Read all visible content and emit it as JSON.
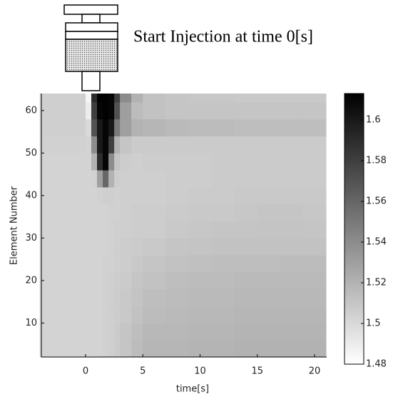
{
  "annotation": "Start Injection at time 0[s]",
  "chart_data": {
    "type": "heatmap",
    "x_label": "time[s]",
    "y_label": "Element Number",
    "x_edges": [
      -4,
      -2,
      0,
      0.5,
      1,
      1.5,
      2,
      2.5,
      3,
      4,
      5,
      7,
      9,
      11,
      13,
      15,
      17,
      19,
      21
    ],
    "y_edges": [
      2,
      6,
      10,
      14,
      18,
      22,
      26,
      30,
      34,
      38,
      42,
      46,
      50,
      54,
      58,
      62,
      64
    ],
    "values": [
      [
        1.503,
        1.503,
        1.503,
        1.503,
        1.503,
        1.504,
        1.505,
        1.507,
        1.51,
        1.515,
        1.518,
        1.518,
        1.519,
        1.519,
        1.52,
        1.52,
        1.52,
        1.52
      ],
      [
        1.503,
        1.503,
        1.503,
        1.503,
        1.503,
        1.504,
        1.505,
        1.507,
        1.51,
        1.514,
        1.517,
        1.517,
        1.518,
        1.518,
        1.519,
        1.519,
        1.519,
        1.519
      ],
      [
        1.503,
        1.503,
        1.503,
        1.503,
        1.503,
        1.504,
        1.505,
        1.506,
        1.508,
        1.512,
        1.515,
        1.516,
        1.517,
        1.517,
        1.518,
        1.518,
        1.518,
        1.518
      ],
      [
        1.503,
        1.503,
        1.503,
        1.503,
        1.503,
        1.504,
        1.505,
        1.506,
        1.508,
        1.511,
        1.514,
        1.515,
        1.516,
        1.516,
        1.517,
        1.517,
        1.517,
        1.517
      ],
      [
        1.503,
        1.503,
        1.503,
        1.503,
        1.503,
        1.504,
        1.505,
        1.506,
        1.507,
        1.51,
        1.512,
        1.514,
        1.515,
        1.515,
        1.516,
        1.516,
        1.516,
        1.516
      ],
      [
        1.503,
        1.503,
        1.503,
        1.503,
        1.503,
        1.504,
        1.504,
        1.505,
        1.506,
        1.508,
        1.51,
        1.512,
        1.513,
        1.514,
        1.514,
        1.514,
        1.515,
        1.515
      ],
      [
        1.503,
        1.503,
        1.503,
        1.503,
        1.503,
        1.503,
        1.504,
        1.505,
        1.506,
        1.507,
        1.508,
        1.51,
        1.511,
        1.512,
        1.512,
        1.512,
        1.512,
        1.512
      ],
      [
        1.503,
        1.503,
        1.503,
        1.503,
        1.503,
        1.503,
        1.504,
        1.505,
        1.505,
        1.506,
        1.506,
        1.508,
        1.509,
        1.51,
        1.51,
        1.511,
        1.511,
        1.51
      ],
      [
        1.503,
        1.503,
        1.503,
        1.503,
        1.503,
        1.503,
        1.504,
        1.504,
        1.505,
        1.506,
        1.506,
        1.507,
        1.508,
        1.508,
        1.509,
        1.51,
        1.51,
        1.509
      ],
      [
        1.503,
        1.503,
        1.503,
        1.503,
        1.504,
        1.505,
        1.505,
        1.504,
        1.505,
        1.505,
        1.505,
        1.506,
        1.507,
        1.507,
        1.508,
        1.508,
        1.508,
        1.508
      ],
      [
        1.503,
        1.503,
        1.503,
        1.504,
        1.53,
        1.56,
        1.52,
        1.506,
        1.505,
        1.505,
        1.505,
        1.506,
        1.506,
        1.507,
        1.507,
        1.507,
        1.507,
        1.507
      ],
      [
        1.503,
        1.503,
        1.503,
        1.52,
        1.59,
        1.61,
        1.54,
        1.51,
        1.506,
        1.505,
        1.506,
        1.506,
        1.506,
        1.507,
        1.507,
        1.507,
        1.507,
        1.507
      ],
      [
        1.504,
        1.504,
        1.503,
        1.54,
        1.6,
        1.61,
        1.58,
        1.52,
        1.51,
        1.507,
        1.507,
        1.507,
        1.507,
        1.507,
        1.507,
        1.507,
        1.507,
        1.507
      ],
      [
        1.505,
        1.505,
        1.5,
        1.57,
        1.6,
        1.61,
        1.6,
        1.55,
        1.53,
        1.52,
        1.518,
        1.516,
        1.515,
        1.515,
        1.514,
        1.514,
        1.514,
        1.514
      ],
      [
        1.505,
        1.505,
        1.49,
        1.58,
        1.61,
        1.612,
        1.61,
        1.57,
        1.53,
        1.515,
        1.512,
        1.51,
        1.51,
        1.51,
        1.51,
        1.51,
        1.51,
        1.51
      ],
      [
        1.505,
        1.505,
        1.485,
        1.59,
        1.612,
        1.612,
        1.61,
        1.58,
        1.54,
        1.52,
        1.512,
        1.51,
        1.509,
        1.509,
        1.508,
        1.508,
        1.508,
        1.508
      ]
    ],
    "xlim": [
      -3.86,
      21.06
    ],
    "ylim": [
      2,
      64
    ],
    "xticks": [
      0,
      5,
      10,
      15,
      20
    ],
    "yticks": [
      10,
      20,
      30,
      40,
      50,
      60
    ],
    "clim": [
      1.48,
      1.613
    ],
    "cticks": [
      1.48,
      1.5,
      1.52,
      1.54,
      1.56,
      1.58,
      1.6
    ],
    "color_low": "#ffffff",
    "color_high": "#000000"
  }
}
